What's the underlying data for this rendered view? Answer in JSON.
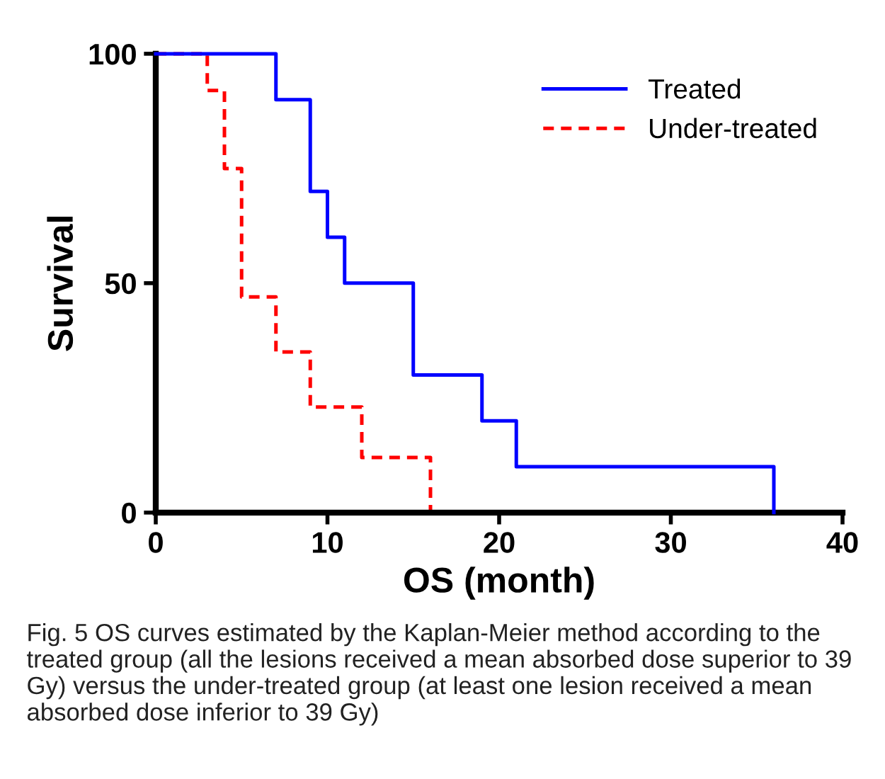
{
  "chart_data": {
    "type": "step",
    "xlabel": "OS (month)",
    "ylabel": "Survival",
    "series": [
      {
        "name": "Treated",
        "color": "#0000ff",
        "line_style": "solid",
        "x": [
          0,
          7,
          9,
          10,
          11,
          15,
          19,
          21,
          36
        ],
        "values": [
          100,
          90,
          70,
          60,
          50,
          30,
          20,
          10,
          0
        ]
      },
      {
        "name": "Under-treated",
        "color": "#ff0000",
        "line_style": "dashed",
        "x": [
          0,
          3,
          4,
          5,
          7,
          9,
          12,
          16
        ],
        "values": [
          100,
          92,
          75,
          47,
          35,
          23,
          12,
          0
        ]
      }
    ],
    "xlim": [
      0,
      40
    ],
    "xticks": [
      0,
      10,
      20,
      30,
      40
    ],
    "ylim": [
      0,
      100
    ],
    "yticks": [
      0,
      50,
      100
    ],
    "grid": false,
    "legend": "top right",
    "annotations": [
      "Fig. 5 OS curves estimated by the Kaplan-Meier method according to the treated group (all the lesions received a mean absorbed dose superior to 39 Gy) versus the under-treated group (at least one lesion received a mean absorbed dose inferior to 39 Gy)"
    ]
  }
}
